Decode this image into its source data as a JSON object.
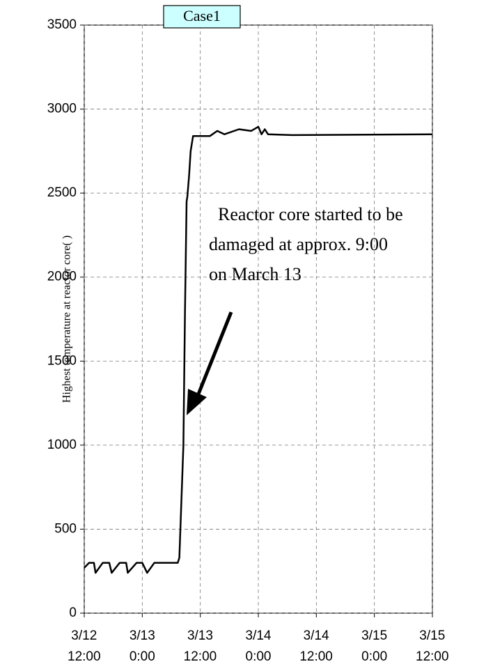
{
  "chart_data": {
    "type": "line",
    "title": "Case1",
    "ylabel": "Highest temperature at reactor core(  )",
    "annotation": [
      "Reactor core started to be",
      "damaged at approx. 9:00",
      "on March 13"
    ],
    "x": [
      "3/12 12:00",
      "3/12 13:00",
      "3/12 14:00",
      "3/12 14:20",
      "3/12 15:50",
      "3/12 17:10",
      "3/12 17:40",
      "3/12 19:20",
      "3/12 20:40",
      "3/12 21:00",
      "3/12 22:50",
      "3/13 00:00",
      "3/13 01:00",
      "3/13 02:30",
      "3/13 04:00",
      "3/13 07:20",
      "3/13 07:40",
      "3/13 08:30",
      "3/13 08:50",
      "3/13 09:10",
      "3/13 09:20",
      "3/13 09:40",
      "3/13 10:00",
      "3/13 10:30",
      "3/13 14:00",
      "3/13 15:30",
      "3/13 17:00",
      "3/13 20:00",
      "3/13 22:30",
      "3/14 00:00",
      "3/14 00:40",
      "3/14 01:20",
      "3/14 02:00",
      "3/14 07:00",
      "3/15 12:00"
    ],
    "values": [
      270,
      300,
      300,
      240,
      300,
      300,
      240,
      300,
      300,
      240,
      300,
      300,
      240,
      300,
      300,
      300,
      330,
      1000,
      1800,
      2450,
      2480,
      2600,
      2750,
      2840,
      2840,
      2870,
      2850,
      2880,
      2870,
      2895,
      2850,
      2880,
      2850,
      2845,
      2850
    ],
    "color": "#000000",
    "xlim": [
      "3/12 12:00",
      "3/15 12:00"
    ],
    "xticks": [
      "3/12 12:00",
      "3/13 0:00",
      "3/13 12:00",
      "3/14 0:00",
      "3/14 12:00",
      "3/15 0:00",
      "3/15 12:00"
    ],
    "ylim": [
      0,
      3500
    ],
    "yticks": [
      0,
      500,
      1000,
      1500,
      2000,
      2500,
      3000,
      3500
    ],
    "grid": true
  }
}
